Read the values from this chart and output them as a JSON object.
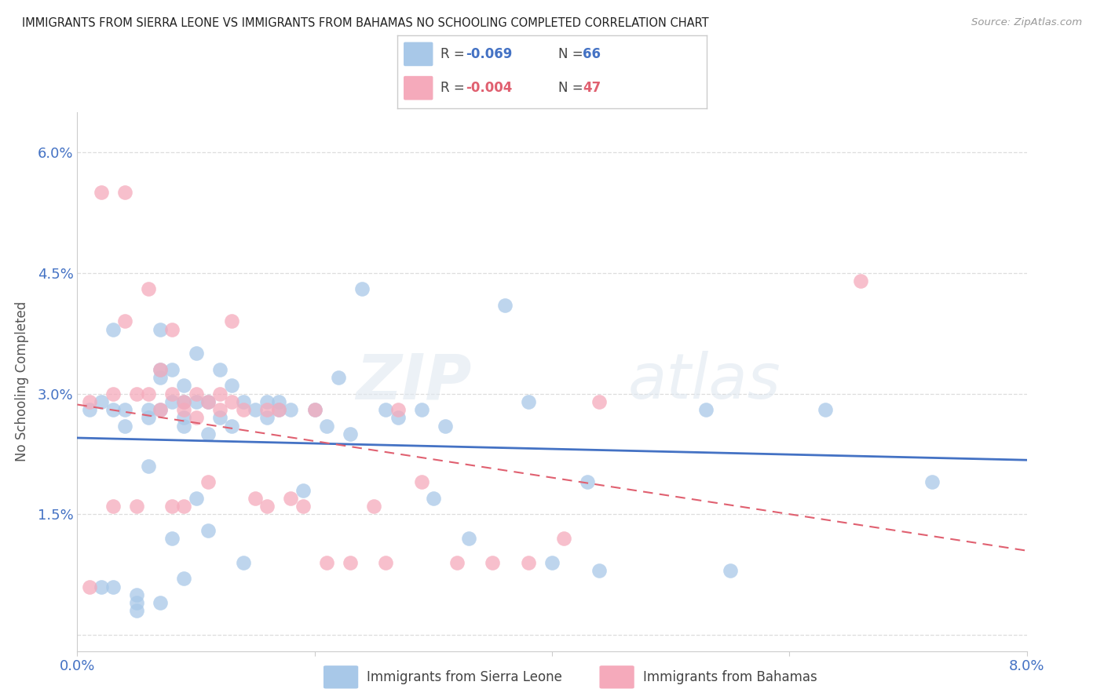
{
  "title": "IMMIGRANTS FROM SIERRA LEONE VS IMMIGRANTS FROM BAHAMAS NO SCHOOLING COMPLETED CORRELATION CHART",
  "source": "Source: ZipAtlas.com",
  "ylabel": "No Schooling Completed",
  "xlim": [
    0.0,
    0.08
  ],
  "ylim": [
    -0.002,
    0.065
  ],
  "xticks": [
    0.0,
    0.02,
    0.04,
    0.06,
    0.08
  ],
  "xticklabels": [
    "0.0%",
    "",
    "",
    "",
    "8.0%"
  ],
  "yticks": [
    0.0,
    0.015,
    0.03,
    0.045,
    0.06
  ],
  "yticklabels": [
    "",
    "1.5%",
    "3.0%",
    "4.5%",
    "6.0%"
  ],
  "sierra_leone_R": -0.069,
  "sierra_leone_N": 66,
  "bahamas_R": -0.004,
  "bahamas_N": 47,
  "sierra_leone_color": "#A8C8E8",
  "bahamas_color": "#F5AABB",
  "sierra_leone_line_color": "#4472C4",
  "bahamas_line_color": "#E06070",
  "legend_sierra_leone": "Immigrants from Sierra Leone",
  "legend_bahamas": "Immigrants from Bahamas",
  "background_color": "#FFFFFF",
  "grid_color": "#CCCCCC",
  "watermark_zip": "ZIP",
  "watermark_atlas": "atlas",
  "sl_x": [
    0.001,
    0.002,
    0.002,
    0.003,
    0.003,
    0.003,
    0.004,
    0.004,
    0.005,
    0.005,
    0.005,
    0.006,
    0.006,
    0.006,
    0.007,
    0.007,
    0.007,
    0.007,
    0.007,
    0.008,
    0.008,
    0.008,
    0.009,
    0.009,
    0.009,
    0.009,
    0.009,
    0.01,
    0.01,
    0.01,
    0.011,
    0.011,
    0.011,
    0.012,
    0.012,
    0.013,
    0.013,
    0.014,
    0.014,
    0.015,
    0.016,
    0.016,
    0.017,
    0.017,
    0.018,
    0.019,
    0.02,
    0.021,
    0.022,
    0.023,
    0.024,
    0.026,
    0.027,
    0.029,
    0.03,
    0.031,
    0.033,
    0.036,
    0.038,
    0.04,
    0.043,
    0.044,
    0.053,
    0.055,
    0.063,
    0.072
  ],
  "sl_y": [
    0.028,
    0.029,
    0.006,
    0.038,
    0.028,
    0.006,
    0.028,
    0.026,
    0.005,
    0.004,
    0.003,
    0.028,
    0.027,
    0.021,
    0.038,
    0.033,
    0.032,
    0.028,
    0.004,
    0.033,
    0.029,
    0.012,
    0.031,
    0.029,
    0.027,
    0.026,
    0.007,
    0.035,
    0.029,
    0.017,
    0.029,
    0.025,
    0.013,
    0.033,
    0.027,
    0.031,
    0.026,
    0.029,
    0.009,
    0.028,
    0.029,
    0.027,
    0.029,
    0.028,
    0.028,
    0.018,
    0.028,
    0.026,
    0.032,
    0.025,
    0.043,
    0.028,
    0.027,
    0.028,
    0.017,
    0.026,
    0.012,
    0.041,
    0.029,
    0.009,
    0.019,
    0.008,
    0.028,
    0.008,
    0.028,
    0.019
  ],
  "bah_x": [
    0.001,
    0.001,
    0.002,
    0.003,
    0.003,
    0.004,
    0.004,
    0.005,
    0.005,
    0.006,
    0.006,
    0.007,
    0.007,
    0.008,
    0.008,
    0.008,
    0.009,
    0.009,
    0.009,
    0.01,
    0.01,
    0.011,
    0.011,
    0.012,
    0.012,
    0.013,
    0.013,
    0.014,
    0.015,
    0.016,
    0.016,
    0.017,
    0.018,
    0.019,
    0.02,
    0.021,
    0.023,
    0.025,
    0.026,
    0.027,
    0.029,
    0.032,
    0.035,
    0.038,
    0.041,
    0.066,
    0.044
  ],
  "bah_y": [
    0.029,
    0.006,
    0.055,
    0.03,
    0.016,
    0.055,
    0.039,
    0.03,
    0.016,
    0.043,
    0.03,
    0.033,
    0.028,
    0.038,
    0.03,
    0.016,
    0.029,
    0.028,
    0.016,
    0.03,
    0.027,
    0.029,
    0.019,
    0.03,
    0.028,
    0.039,
    0.029,
    0.028,
    0.017,
    0.028,
    0.016,
    0.028,
    0.017,
    0.016,
    0.028,
    0.009,
    0.009,
    0.016,
    0.009,
    0.028,
    0.019,
    0.009,
    0.009,
    0.009,
    0.012,
    0.044,
    0.029
  ]
}
